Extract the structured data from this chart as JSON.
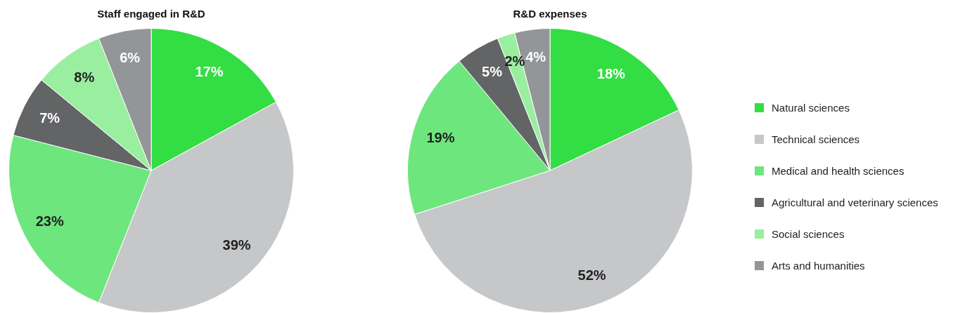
{
  "chart_data": [
    {
      "type": "pie",
      "title": "Staff engaged in R&D",
      "categories": [
        null,
        null,
        null,
        null,
        null,
        null
      ],
      "values": [
        17,
        39,
        23,
        7,
        8,
        6
      ],
      "colors": [
        "#33dd44",
        "#c6c7c9",
        "#6ee67e",
        "#636466",
        "#9aeea0",
        "#939598"
      ],
      "value_labels": [
        "17%",
        "39%",
        "23%",
        "7%",
        "8%",
        "6%"
      ],
      "legend": false
    },
    {
      "type": "pie",
      "title": "R&D expenses",
      "categories": [
        "Natural sciences",
        "Technical sciences",
        "Medical and health sciences",
        "Agricultural and veterinary sciences",
        "Social sciences",
        "Arts and humanities"
      ],
      "values": [
        18,
        52,
        19,
        5,
        2,
        4
      ],
      "colors": [
        "#33dd44",
        "#c6c7c9",
        "#6ee67e",
        "#636466",
        "#9aeea0",
        "#939598"
      ],
      "value_labels": [
        "18%",
        "52%",
        "19%",
        "5%",
        "2%",
        "4%"
      ],
      "legend": "right"
    }
  ]
}
